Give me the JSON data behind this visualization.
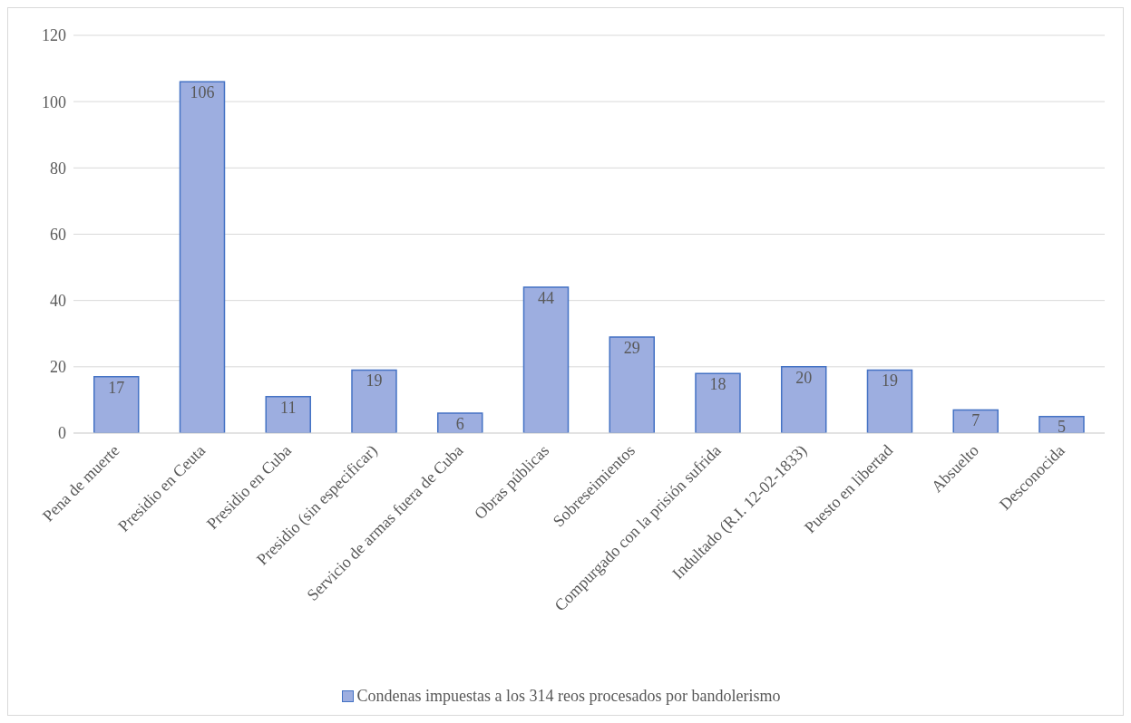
{
  "chart_data": {
    "type": "bar",
    "categories": [
      "Pena de muerte",
      "Presidio en Ceuta",
      "Presidio en Cuba",
      "Presidio (sin especificar)",
      "Servicio de armas fuera de Cuba",
      "Obras públicas",
      "Sobreseimientos",
      "Compurgado con la prisión sufrida",
      "Indultado (R.I. 12-02-1833)",
      "Puesto en libertad",
      "Absuelto",
      "Desconocida"
    ],
    "series": [
      {
        "name": "Condenas impuestas a los 314 reos procesados por bandolerismo",
        "color": "#9daee0",
        "values": [
          17,
          106,
          11,
          19,
          6,
          44,
          29,
          18,
          20,
          19,
          7,
          5
        ]
      }
    ],
    "ylim": [
      0,
      120
    ],
    "yticks": [
      0,
      20,
      40,
      60,
      80,
      100,
      120
    ],
    "grid": "y",
    "legend": "bottom",
    "data_labels": true
  }
}
